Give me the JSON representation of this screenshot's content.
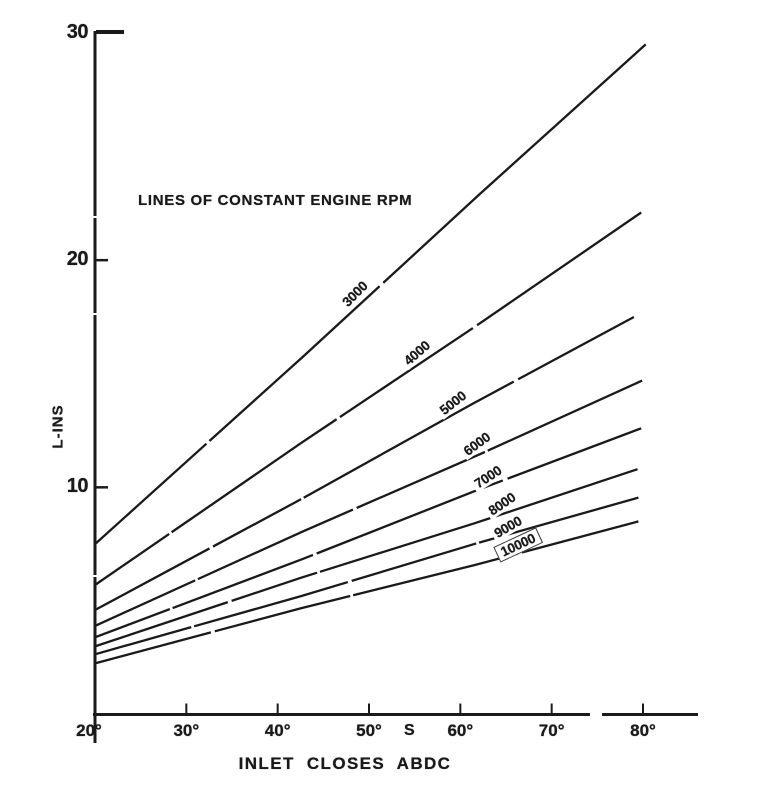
{
  "figure": {
    "background_color": "#ffffff",
    "ink_color": "#1a1a1a",
    "annotation": "LINES OF CONSTANT ENGINE RPM",
    "x_axis_label": "INLET CLOSES ABDC",
    "y_axis_label": "L-INS",
    "stray_mark": "S"
  },
  "chart_data": {
    "type": "line",
    "title": "",
    "annotation": "LINES OF CONSTANT ENGINE RPM",
    "xlabel": "INLET CLOSES ABDC",
    "ylabel": "L-INS",
    "xlim": [
      20,
      86
    ],
    "ylim": [
      0,
      30
    ],
    "x_ticks": [
      20,
      30,
      40,
      50,
      60,
      70,
      80
    ],
    "x_tick_suffix": "°",
    "y_ticks": [
      10,
      20,
      30
    ],
    "grid": false,
    "legend_position": "labels-on-lines",
    "series": [
      {
        "name": "3000",
        "x": [
          20,
          80.3
        ],
        "y": [
          7.5,
          29.5
        ],
        "label_x": 48.5
      },
      {
        "name": "4000",
        "x": [
          20,
          79.8
        ],
        "y": [
          5.7,
          22.1
        ],
        "label_x": 55.3
      },
      {
        "name": "5000",
        "x": [
          20,
          79.0
        ],
        "y": [
          4.6,
          17.5
        ],
        "label_x": 59.2
      },
      {
        "name": "6000",
        "x": [
          20,
          79.9
        ],
        "y": [
          3.9,
          14.7
        ],
        "label_x": 61.8
      },
      {
        "name": "7000",
        "x": [
          20,
          79.8
        ],
        "y": [
          3.4,
          12.6
        ],
        "label_x": 63.0
      },
      {
        "name": "8000",
        "x": [
          20,
          79.4
        ],
        "y": [
          3.0,
          10.8
        ],
        "label_x": 64.6
      },
      {
        "name": "9000",
        "x": [
          20,
          79.5
        ],
        "y": [
          2.65,
          9.55
        ],
        "label_x": 65.2
      },
      {
        "name": "10000",
        "x": [
          20,
          79.5
        ],
        "y": [
          2.25,
          8.5
        ],
        "label_x": 66.3,
        "boxed": true
      }
    ]
  }
}
